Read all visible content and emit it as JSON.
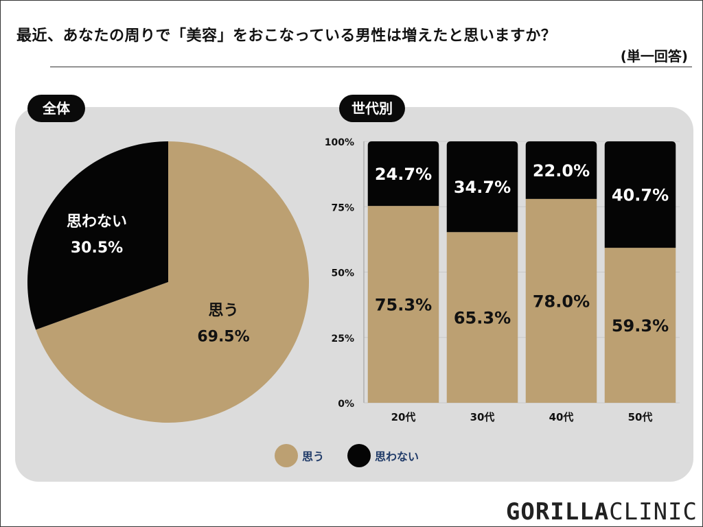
{
  "title": "最近、あなたの周りで「美容」をおこなっている男性は増えたと思いますか？",
  "subtitle": "(単一回答)",
  "brand": {
    "logo_bold": "GORILLA",
    "logo_light": "CLINIC"
  },
  "chart_data": [
    {
      "type": "pie",
      "badge": "全体",
      "slices": [
        {
          "label": "思う",
          "value": 69.5,
          "display": "69.5%",
          "color": "#bca072",
          "text_color": "#111111"
        },
        {
          "label": "思わない",
          "value": 30.5,
          "display": "30.5%",
          "color": "#050505",
          "text_color": "#ffffff"
        }
      ]
    },
    {
      "type": "bar",
      "stacked": true,
      "badge": "世代別",
      "categories": [
        "20代",
        "30代",
        "40代",
        "50代"
      ],
      "y_ticks": [
        "0%",
        "25%",
        "50%",
        "75%",
        "100%"
      ],
      "ylim": [
        0,
        100
      ],
      "series": [
        {
          "name": "思う",
          "color": "#bca072",
          "text_color": "#111111",
          "values": [
            75.3,
            65.3,
            78.0,
            59.3
          ],
          "labels": [
            "75.3%",
            "65.3%",
            "78.0%",
            "59.3%"
          ]
        },
        {
          "name": "思わない",
          "color": "#050505",
          "text_color": "#ffffff",
          "values": [
            24.7,
            34.7,
            22.0,
            40.7
          ],
          "labels": [
            "24.7%",
            "34.7%",
            "22.0%",
            "40.7%"
          ]
        }
      ]
    }
  ],
  "legend": [
    {
      "label": "思う",
      "color": "#bca072"
    },
    {
      "label": "思わない",
      "color": "#050505"
    }
  ]
}
